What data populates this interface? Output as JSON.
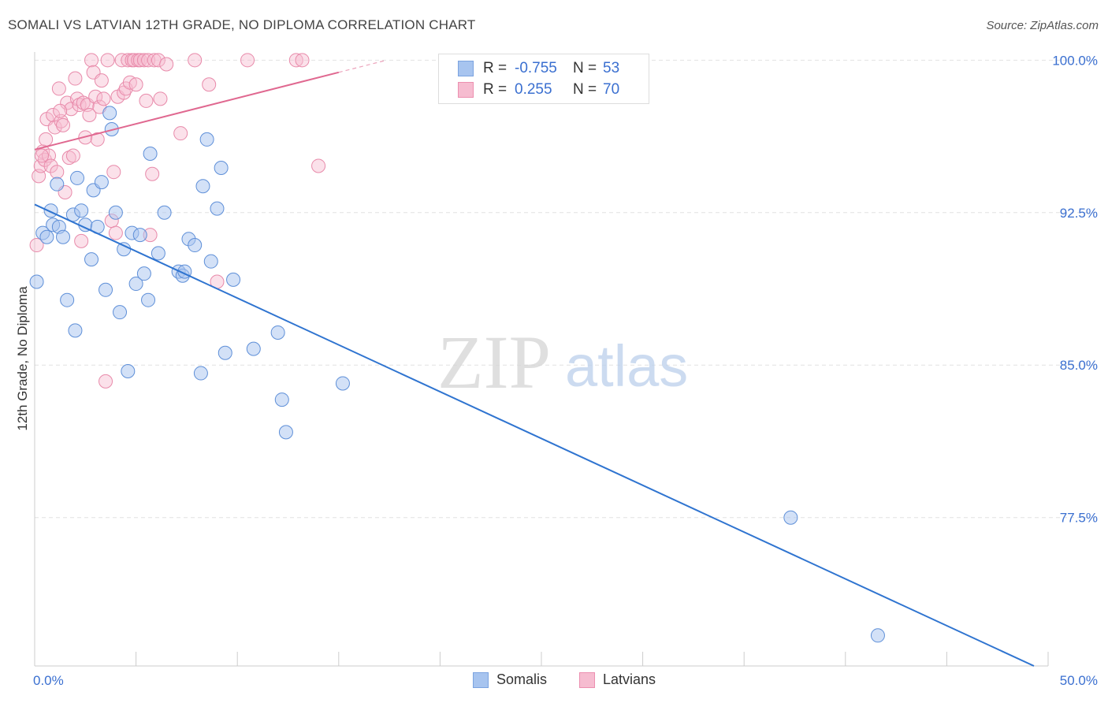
{
  "title": "SOMALI VS LATVIAN 12TH GRADE, NO DIPLOMA CORRELATION CHART",
  "source": "Source: ZipAtlas.com",
  "watermark": {
    "zip": "ZIP",
    "atlas": "atlas"
  },
  "legend": {
    "rows": [
      {
        "r_label": "R =",
        "r_value": "-0.755",
        "n_label": "N =",
        "n_value": "53",
        "color": "#a7c4ef",
        "border": "#7ba3e0"
      },
      {
        "r_label": "R =",
        "r_value": "0.255",
        "n_label": "N =",
        "n_value": "70",
        "color": "#f6bcd0",
        "border": "#ec8fb0"
      }
    ]
  },
  "bottom_legend": {
    "items": [
      "Somalis",
      "Latvians"
    ]
  },
  "colors": {
    "somali_fill": "#a7c4ef",
    "somali_stroke": "#5e8fd8",
    "somali_line": "#2f74d0",
    "latvian_fill": "#f6bcd0",
    "latvian_stroke": "#e88aaa",
    "latvian_line": "#e06890",
    "axis_label": "#3a6fd0"
  },
  "chart_data": {
    "type": "scatter",
    "title": "SOMALI VS LATVIAN 12TH GRADE, NO DIPLOMA CORRELATION CHART",
    "xlabel": "",
    "ylabel": "12th Grade, No Diploma",
    "xlim": [
      0,
      50
    ],
    "ylim": [
      70.2,
      100.4
    ],
    "x_tick_labels": [
      "0.0%",
      "50.0%"
    ],
    "y_ticks": [
      77.5,
      85.0,
      92.5,
      100.0
    ],
    "y_tick_labels": [
      "77.5%",
      "85.0%",
      "92.5%",
      "100.0%"
    ],
    "grid": true,
    "legend_position": "top-center",
    "series": [
      {
        "name": "Somalis",
        "r": -0.755,
        "n": 53,
        "trend": {
          "x": [
            0,
            49.3
          ],
          "y": [
            92.9,
            70.2
          ]
        },
        "points": [
          [
            0.1,
            89.1
          ],
          [
            0.4,
            91.5
          ],
          [
            0.6,
            91.3
          ],
          [
            0.8,
            92.6
          ],
          [
            0.9,
            91.9
          ],
          [
            1.1,
            93.9
          ],
          [
            1.2,
            91.8
          ],
          [
            1.4,
            91.3
          ],
          [
            1.6,
            88.2
          ],
          [
            1.9,
            92.4
          ],
          [
            2.0,
            86.7
          ],
          [
            2.1,
            94.2
          ],
          [
            2.3,
            92.6
          ],
          [
            2.5,
            91.9
          ],
          [
            2.8,
            90.2
          ],
          [
            2.9,
            93.6
          ],
          [
            3.1,
            91.8
          ],
          [
            3.3,
            94.0
          ],
          [
            3.5,
            88.7
          ],
          [
            3.7,
            97.4
          ],
          [
            3.8,
            96.6
          ],
          [
            4.0,
            92.5
          ],
          [
            4.2,
            87.6
          ],
          [
            4.4,
            90.7
          ],
          [
            4.6,
            84.7
          ],
          [
            4.8,
            91.5
          ],
          [
            5.0,
            89.0
          ],
          [
            5.2,
            91.4
          ],
          [
            5.4,
            89.5
          ],
          [
            5.6,
            88.2
          ],
          [
            5.7,
            95.4
          ],
          [
            6.1,
            90.5
          ],
          [
            6.4,
            92.5
          ],
          [
            7.1,
            89.6
          ],
          [
            7.3,
            89.4
          ],
          [
            7.4,
            89.6
          ],
          [
            7.6,
            91.2
          ],
          [
            7.9,
            90.9
          ],
          [
            8.2,
            84.6
          ],
          [
            8.3,
            93.8
          ],
          [
            8.5,
            96.1
          ],
          [
            8.7,
            90.1
          ],
          [
            9.0,
            92.7
          ],
          [
            9.2,
            94.7
          ],
          [
            9.4,
            85.6
          ],
          [
            9.8,
            89.2
          ],
          [
            10.8,
            85.8
          ],
          [
            12.0,
            86.6
          ],
          [
            12.2,
            83.3
          ],
          [
            12.4,
            81.7
          ],
          [
            15.2,
            84.1
          ],
          [
            37.3,
            77.5
          ],
          [
            41.6,
            71.7
          ]
        ]
      },
      {
        "name": "Latvians",
        "r": 0.255,
        "n": 70,
        "trend": {
          "x": [
            0,
            15
          ],
          "y": [
            95.6,
            99.4
          ]
        },
        "points": [
          [
            0.1,
            90.9
          ],
          [
            0.2,
            94.3
          ],
          [
            0.3,
            94.8
          ],
          [
            0.4,
            95.5
          ],
          [
            0.5,
            95.1
          ],
          [
            0.6,
            97.1
          ],
          [
            0.7,
            95.3
          ],
          [
            0.8,
            94.8
          ],
          [
            0.9,
            97.3
          ],
          [
            1.0,
            96.7
          ],
          [
            1.1,
            94.5
          ],
          [
            1.2,
            98.6
          ],
          [
            1.3,
            97.0
          ],
          [
            1.4,
            96.8
          ],
          [
            1.5,
            93.5
          ],
          [
            1.6,
            97.9
          ],
          [
            1.7,
            95.2
          ],
          [
            1.8,
            97.6
          ],
          [
            1.9,
            95.3
          ],
          [
            2.0,
            99.1
          ],
          [
            2.1,
            98.1
          ],
          [
            2.2,
            97.8
          ],
          [
            2.3,
            91.1
          ],
          [
            2.4,
            97.9
          ],
          [
            2.5,
            96.2
          ],
          [
            2.6,
            97.8
          ],
          [
            2.7,
            97.3
          ],
          [
            2.8,
            100.0
          ],
          [
            2.9,
            99.4
          ],
          [
            3.0,
            98.2
          ],
          [
            3.1,
            96.1
          ],
          [
            3.2,
            97.7
          ],
          [
            3.3,
            99.0
          ],
          [
            3.4,
            98.1
          ],
          [
            3.5,
            84.2
          ],
          [
            3.6,
            100.0
          ],
          [
            3.8,
            92.1
          ],
          [
            3.9,
            94.5
          ],
          [
            4.0,
            91.5
          ],
          [
            4.1,
            98.2
          ],
          [
            4.3,
            100.0
          ],
          [
            4.4,
            98.4
          ],
          [
            4.5,
            98.6
          ],
          [
            4.6,
            100.0
          ],
          [
            4.7,
            98.9
          ],
          [
            4.8,
            100.0
          ],
          [
            4.9,
            100.0
          ],
          [
            5.0,
            98.8
          ],
          [
            5.1,
            100.0
          ],
          [
            5.2,
            100.0
          ],
          [
            5.4,
            100.0
          ],
          [
            5.5,
            98.0
          ],
          [
            5.6,
            100.0
          ],
          [
            5.7,
            91.4
          ],
          [
            5.8,
            94.4
          ],
          [
            5.9,
            100.0
          ],
          [
            6.1,
            100.0
          ],
          [
            6.2,
            98.1
          ],
          [
            6.5,
            99.8
          ],
          [
            7.2,
            96.4
          ],
          [
            7.9,
            100.0
          ],
          [
            8.6,
            98.8
          ],
          [
            9.0,
            89.1
          ],
          [
            10.5,
            100.0
          ],
          [
            12.9,
            100.0
          ],
          [
            13.2,
            100.0
          ],
          [
            14.0,
            94.8
          ],
          [
            0.35,
            95.3
          ],
          [
            0.55,
            96.1
          ],
          [
            1.25,
            97.5
          ]
        ]
      }
    ]
  }
}
